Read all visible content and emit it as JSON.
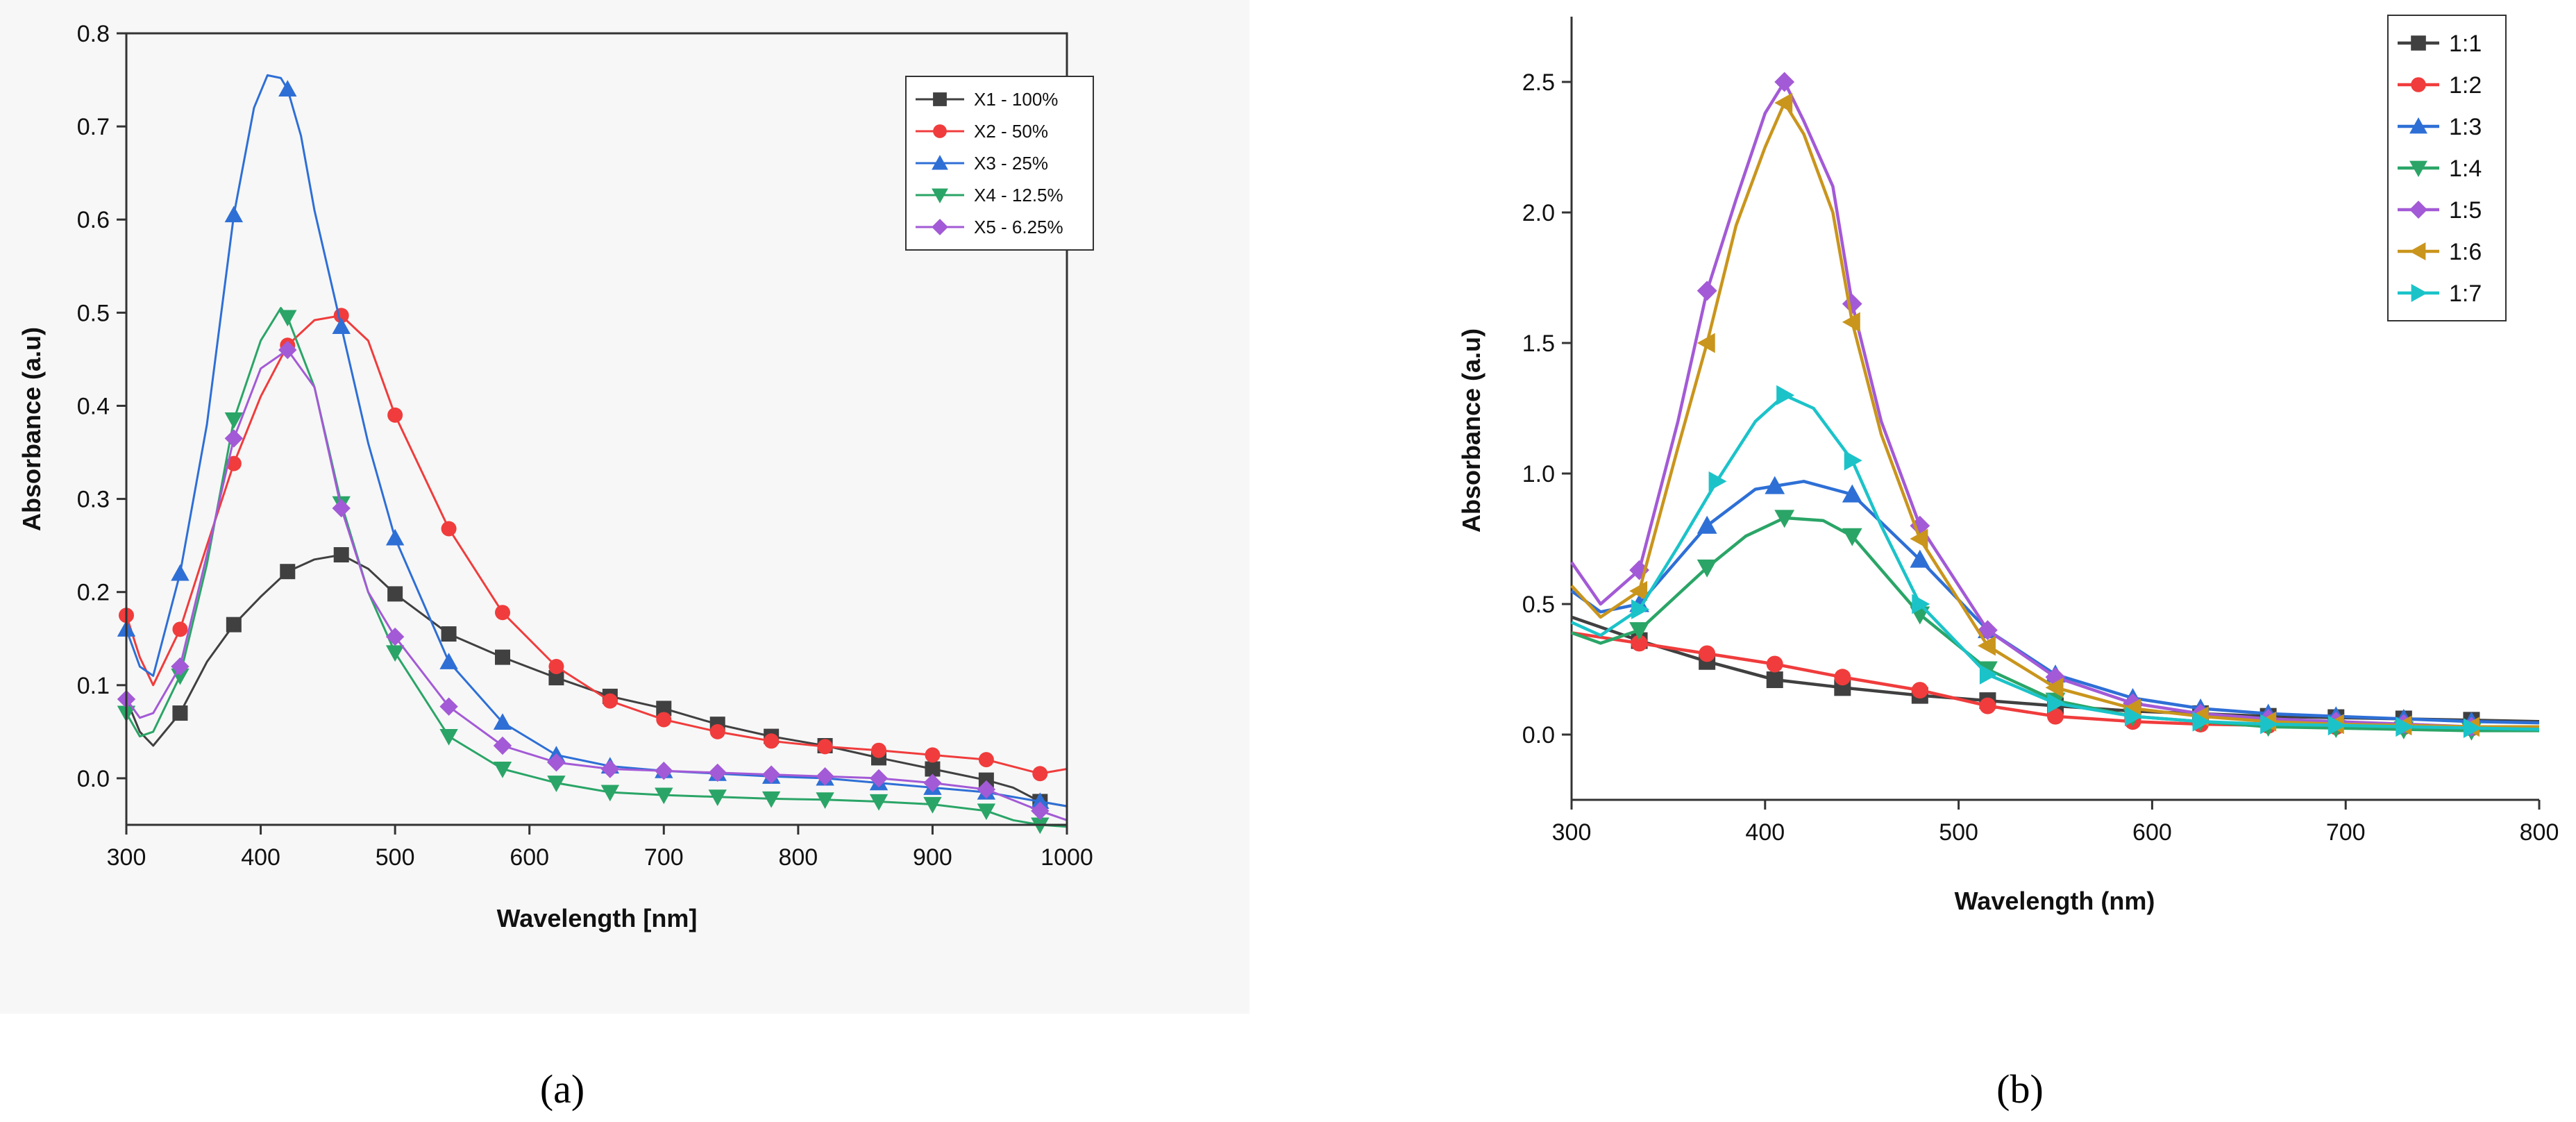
{
  "figure": {
    "caption_a": "(a)",
    "caption_b": "(b)"
  },
  "chart_data": [
    {
      "type": "line",
      "panel": "a",
      "xlabel": "Wavelength [nm]",
      "ylabel": "Absorbance (a.u)",
      "xlim": [
        300,
        1000
      ],
      "ylim": [
        -0.05,
        0.8
      ],
      "xticks": [
        300,
        400,
        500,
        600,
        700,
        800,
        900,
        1000
      ],
      "yticks": [
        0.0,
        0.1,
        0.2,
        0.3,
        0.4,
        0.5,
        0.6,
        0.7,
        0.8
      ],
      "legend_position": "top-right",
      "series": [
        {
          "name": "X1 - 100%",
          "color": "#404040",
          "marker": "square",
          "x": [
            300,
            310,
            320,
            340,
            360,
            380,
            400,
            420,
            440,
            460,
            480,
            500,
            540,
            580,
            620,
            660,
            700,
            740,
            780,
            820,
            860,
            900,
            940,
            960,
            980,
            1000
          ],
          "y": [
            0.085,
            0.05,
            0.035,
            0.07,
            0.125,
            0.165,
            0.195,
            0.222,
            0.235,
            0.24,
            0.225,
            0.198,
            0.155,
            0.13,
            0.108,
            0.088,
            0.075,
            0.058,
            0.045,
            0.035,
            0.022,
            0.01,
            -0.002,
            -0.01,
            -0.025,
            -0.03
          ],
          "marker_x": [
            340,
            380,
            420,
            460,
            500,
            540,
            580,
            620,
            660,
            700,
            740,
            780,
            820,
            860,
            900,
            940,
            980
          ]
        },
        {
          "name": "X2 - 50%",
          "color": "#f03c3c",
          "marker": "circle",
          "x": [
            300,
            310,
            320,
            340,
            360,
            380,
            400,
            420,
            440,
            460,
            480,
            500,
            540,
            580,
            620,
            660,
            700,
            740,
            780,
            820,
            860,
            900,
            940,
            980,
            1000
          ],
          "y": [
            0.175,
            0.13,
            0.1,
            0.16,
            0.25,
            0.338,
            0.41,
            0.465,
            0.492,
            0.497,
            0.47,
            0.39,
            0.268,
            0.178,
            0.12,
            0.083,
            0.063,
            0.05,
            0.04,
            0.034,
            0.03,
            0.025,
            0.02,
            0.005,
            0.01
          ],
          "marker_x": [
            300,
            340,
            380,
            420,
            460,
            500,
            540,
            580,
            620,
            660,
            700,
            740,
            780,
            820,
            860,
            900,
            940,
            980
          ]
        },
        {
          "name": "X3 - 25%",
          "color": "#2e6fd6",
          "marker": "triangle-up",
          "x": [
            300,
            310,
            320,
            340,
            360,
            380,
            395,
            405,
            415,
            420,
            430,
            440,
            460,
            480,
            500,
            540,
            580,
            620,
            660,
            700,
            740,
            780,
            820,
            860,
            900,
            940,
            980,
            1000
          ],
          "y": [
            0.16,
            0.12,
            0.11,
            0.22,
            0.38,
            0.605,
            0.72,
            0.755,
            0.752,
            0.74,
            0.69,
            0.61,
            0.485,
            0.36,
            0.258,
            0.125,
            0.06,
            0.025,
            0.013,
            0.008,
            0.005,
            0.002,
            0.0,
            -0.005,
            -0.01,
            -0.015,
            -0.025,
            -0.03
          ],
          "marker_x": [
            300,
            340,
            380,
            420,
            460,
            500,
            540,
            580,
            620,
            660,
            700,
            740,
            780,
            820,
            860,
            900,
            940,
            980
          ]
        },
        {
          "name": "X4 - 12.5%",
          "color": "#2aa567",
          "marker": "triangle-down",
          "x": [
            300,
            310,
            320,
            340,
            360,
            380,
            400,
            415,
            420,
            440,
            460,
            480,
            500,
            540,
            580,
            620,
            660,
            700,
            740,
            780,
            820,
            860,
            900,
            940,
            960,
            980,
            1000
          ],
          "y": [
            0.07,
            0.045,
            0.05,
            0.11,
            0.23,
            0.385,
            0.47,
            0.505,
            0.495,
            0.42,
            0.295,
            0.2,
            0.135,
            0.045,
            0.01,
            -0.005,
            -0.015,
            -0.018,
            -0.02,
            -0.022,
            -0.023,
            -0.025,
            -0.028,
            -0.035,
            -0.045,
            -0.05,
            -0.052
          ],
          "marker_x": [
            300,
            340,
            380,
            420,
            460,
            500,
            540,
            580,
            620,
            660,
            700,
            740,
            780,
            820,
            860,
            900,
            940,
            980
          ]
        },
        {
          "name": "X5 - 6.25%",
          "color": "#a35ad6",
          "marker": "diamond",
          "x": [
            300,
            310,
            320,
            340,
            360,
            380,
            400,
            420,
            440,
            460,
            480,
            500,
            540,
            580,
            620,
            660,
            700,
            740,
            780,
            820,
            860,
            900,
            940,
            980,
            1000
          ],
          "y": [
            0.085,
            0.065,
            0.07,
            0.12,
            0.24,
            0.365,
            0.44,
            0.46,
            0.42,
            0.29,
            0.2,
            0.152,
            0.077,
            0.035,
            0.017,
            0.01,
            0.008,
            0.006,
            0.004,
            0.002,
            0.0,
            -0.005,
            -0.012,
            -0.035,
            -0.045
          ],
          "marker_x": [
            300,
            340,
            380,
            420,
            460,
            500,
            540,
            580,
            620,
            660,
            700,
            740,
            780,
            820,
            860,
            900,
            940,
            980
          ]
        }
      ]
    },
    {
      "type": "line",
      "panel": "b",
      "xlabel": "Wavelength (nm)",
      "ylabel": "Absorbance (a.u)",
      "xlim": [
        300,
        800
      ],
      "ylim": [
        -0.25,
        2.75
      ],
      "xticks": [
        300,
        400,
        500,
        600,
        700,
        800
      ],
      "yticks": [
        0.0,
        0.5,
        1.0,
        1.5,
        2.0,
        2.5
      ],
      "legend_position": "top-right",
      "series": [
        {
          "name": "1:1",
          "color": "#404040",
          "marker": "square",
          "x": [
            300,
            335,
            370,
            405,
            440,
            480,
            515,
            550,
            590,
            625,
            660,
            695,
            730,
            765,
            800
          ],
          "y": [
            0.45,
            0.36,
            0.28,
            0.21,
            0.18,
            0.15,
            0.13,
            0.11,
            0.09,
            0.08,
            0.07,
            0.065,
            0.06,
            0.055,
            0.05
          ],
          "marker_x": [
            335,
            370,
            405,
            440,
            480,
            515,
            550,
            590,
            625,
            660,
            695,
            730,
            765
          ]
        },
        {
          "name": "1:2",
          "color": "#f03c3c",
          "marker": "circle",
          "x": [
            300,
            335,
            370,
            405,
            440,
            480,
            515,
            550,
            590,
            625,
            660,
            695,
            730,
            765,
            800
          ],
          "y": [
            0.39,
            0.35,
            0.31,
            0.27,
            0.22,
            0.17,
            0.11,
            0.07,
            0.05,
            0.04,
            0.035,
            0.03,
            0.03,
            0.025,
            0.02
          ],
          "marker_x": [
            335,
            370,
            405,
            440,
            480,
            515,
            550,
            590,
            625,
            660,
            695,
            730,
            765
          ]
        },
        {
          "name": "1:3",
          "color": "#2e6fd6",
          "marker": "triangle-up",
          "x": [
            300,
            315,
            335,
            370,
            395,
            420,
            445,
            480,
            515,
            550,
            590,
            625,
            660,
            695,
            730,
            765,
            800
          ],
          "y": [
            0.55,
            0.47,
            0.5,
            0.8,
            0.94,
            0.97,
            0.92,
            0.67,
            0.4,
            0.23,
            0.14,
            0.1,
            0.08,
            0.07,
            0.06,
            0.05,
            0.045
          ],
          "marker_x": [
            335,
            370,
            405,
            445,
            480,
            515,
            550,
            590,
            625,
            660,
            695,
            730,
            765
          ]
        },
        {
          "name": "1:4",
          "color": "#2aa567",
          "marker": "triangle-down",
          "x": [
            300,
            315,
            335,
            370,
            390,
            410,
            430,
            445,
            480,
            515,
            550,
            590,
            625,
            660,
            695,
            730,
            765,
            800
          ],
          "y": [
            0.39,
            0.35,
            0.4,
            0.64,
            0.76,
            0.83,
            0.82,
            0.76,
            0.46,
            0.25,
            0.13,
            0.07,
            0.05,
            0.03,
            0.025,
            0.02,
            0.015,
            0.015
          ],
          "marker_x": [
            335,
            370,
            410,
            445,
            480,
            515,
            550,
            590,
            625,
            660,
            695,
            730,
            765
          ]
        },
        {
          "name": "1:5",
          "color": "#a35ad6",
          "marker": "diamond",
          "x": [
            300,
            315,
            335,
            355,
            370,
            385,
            400,
            410,
            420,
            435,
            445,
            460,
            480,
            515,
            550,
            590,
            625,
            660,
            695,
            730,
            765,
            800
          ],
          "y": [
            0.66,
            0.5,
            0.63,
            1.2,
            1.7,
            2.05,
            2.38,
            2.5,
            2.35,
            2.1,
            1.65,
            1.2,
            0.8,
            0.4,
            0.22,
            0.12,
            0.08,
            0.06,
            0.05,
            0.04,
            0.03,
            0.03
          ],
          "marker_x": [
            335,
            370,
            410,
            445,
            480,
            515,
            550,
            590,
            625,
            660,
            695,
            730,
            765
          ]
        },
        {
          "name": "1:6",
          "color": "#c9951c",
          "marker": "triangle-left",
          "x": [
            300,
            315,
            335,
            355,
            370,
            385,
            400,
            410,
            420,
            435,
            445,
            460,
            480,
            515,
            550,
            590,
            625,
            660,
            695,
            730,
            765,
            800
          ],
          "y": [
            0.57,
            0.45,
            0.55,
            1.1,
            1.5,
            1.95,
            2.25,
            2.42,
            2.3,
            2.0,
            1.58,
            1.15,
            0.75,
            0.34,
            0.18,
            0.1,
            0.07,
            0.05,
            0.04,
            0.035,
            0.03,
            0.03
          ],
          "marker_x": [
            335,
            370,
            410,
            445,
            480,
            515,
            550,
            590,
            625,
            660,
            695,
            730,
            765
          ]
        },
        {
          "name": "1:7",
          "color": "#1bc3c9",
          "marker": "triangle-right",
          "x": [
            300,
            315,
            335,
            355,
            375,
            395,
            410,
            425,
            445,
            460,
            480,
            515,
            550,
            590,
            625,
            660,
            695,
            730,
            765,
            800
          ],
          "y": [
            0.43,
            0.38,
            0.48,
            0.72,
            0.97,
            1.2,
            1.3,
            1.25,
            1.05,
            0.8,
            0.5,
            0.23,
            0.12,
            0.07,
            0.05,
            0.04,
            0.035,
            0.03,
            0.025,
            0.02
          ],
          "marker_x": [
            335,
            375,
            410,
            445,
            480,
            515,
            550,
            590,
            625,
            660,
            695,
            730,
            765
          ]
        }
      ]
    }
  ]
}
